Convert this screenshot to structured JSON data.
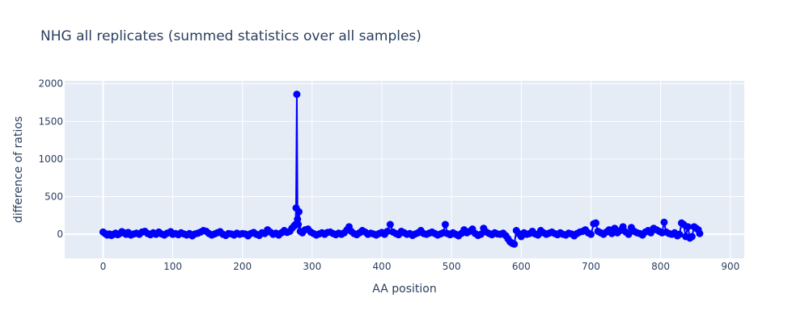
{
  "chart_data": {
    "type": "line",
    "title": "NHG all replicates (summed statistics over all samples)",
    "xlabel": "AA position",
    "ylabel": "difference of ratios",
    "xlim": [
      -55,
      920
    ],
    "ylim": [
      -320,
      2040
    ],
    "x_ticks": [
      0,
      100,
      200,
      300,
      400,
      500,
      600,
      700,
      800,
      900
    ],
    "y_ticks": [
      0,
      500,
      1000,
      1500,
      2000
    ],
    "grid": true,
    "legend": "none",
    "colors": {
      "line": "#0000ff",
      "marker": "#0000ff",
      "plot_bg": "#e5ecf6",
      "grid": "#ffffff",
      "text": "#2a3f5f"
    },
    "series": [
      {
        "x": [
          0,
          3,
          6,
          9,
          12,
          15,
          18,
          21,
          24,
          27,
          30,
          33,
          36,
          40,
          44,
          48,
          52,
          56,
          60,
          64,
          68,
          72,
          76,
          80,
          84,
          88,
          92,
          97,
          100,
          104,
          108,
          112,
          116,
          120,
          124,
          128,
          132,
          136,
          140,
          144,
          148,
          152,
          156,
          160,
          164,
          168,
          172,
          176,
          180,
          184,
          188,
          192,
          196,
          200,
          204,
          208,
          212,
          216,
          220,
          224,
          228,
          232,
          236,
          240,
          244,
          248,
          252,
          256,
          260,
          264,
          268,
          271,
          274,
          276,
          277,
          278,
          279,
          280,
          281,
          283,
          286,
          290,
          294,
          298,
          302,
          306,
          310,
          314,
          318,
          322,
          326,
          330,
          334,
          338,
          342,
          346,
          350,
          353,
          356,
          360,
          364,
          368,
          372,
          376,
          380,
          384,
          388,
          392,
          396,
          400,
          404,
          408,
          412,
          416,
          420,
          424,
          428,
          432,
          436,
          440,
          444,
          448,
          452,
          456,
          460,
          464,
          468,
          472,
          476,
          480,
          484,
          488,
          491,
          494,
          498,
          502,
          506,
          510,
          514,
          518,
          522,
          526,
          530,
          534,
          538,
          542,
          546,
          550,
          554,
          558,
          562,
          566,
          570,
          574,
          578,
          581,
          584,
          587,
          590,
          593,
          596,
          600,
          604,
          608,
          612,
          616,
          620,
          624,
          628,
          632,
          636,
          640,
          644,
          648,
          652,
          656,
          660,
          664,
          668,
          672,
          676,
          680,
          684,
          688,
          692,
          696,
          700,
          704,
          707,
          710,
          714,
          718,
          722,
          726,
          730,
          734,
          738,
          742,
          746,
          750,
          754,
          758,
          762,
          766,
          770,
          774,
          778,
          782,
          786,
          790,
          794,
          798,
          802,
          805,
          808,
          812,
          816,
          820,
          824,
          827,
          830,
          833,
          836,
          839,
          842,
          845,
          848,
          851,
          854,
          856
        ],
        "y": [
          30,
          10,
          -10,
          5,
          -15,
          0,
          15,
          -5,
          10,
          35,
          20,
          0,
          25,
          -10,
          5,
          15,
          0,
          30,
          40,
          10,
          -5,
          20,
          0,
          30,
          5,
          -10,
          15,
          35,
          0,
          10,
          -5,
          20,
          5,
          -10,
          10,
          -20,
          5,
          15,
          30,
          50,
          40,
          10,
          -10,
          5,
          20,
          35,
          0,
          -15,
          10,
          5,
          -10,
          15,
          0,
          10,
          5,
          -20,
          10,
          25,
          0,
          -15,
          20,
          10,
          60,
          30,
          0,
          15,
          -10,
          20,
          50,
          25,
          40,
          80,
          110,
          130,
          350,
          1860,
          200,
          130,
          300,
          40,
          20,
          60,
          70,
          30,
          10,
          -10,
          5,
          20,
          0,
          25,
          30,
          10,
          -5,
          15,
          0,
          20,
          60,
          100,
          40,
          10,
          -5,
          20,
          50,
          30,
          0,
          15,
          5,
          -10,
          10,
          25,
          0,
          40,
          130,
          30,
          10,
          -5,
          40,
          20,
          0,
          10,
          -15,
          5,
          20,
          50,
          10,
          0,
          15,
          30,
          10,
          -10,
          5,
          20,
          130,
          10,
          -5,
          20,
          0,
          -20,
          10,
          60,
          20,
          40,
          70,
          10,
          -15,
          0,
          80,
          30,
          10,
          -5,
          20,
          5,
          0,
          15,
          -20,
          -60,
          -100,
          -120,
          -130,
          50,
          10,
          -30,
          20,
          0,
          10,
          40,
          5,
          -10,
          50,
          20,
          0,
          15,
          30,
          10,
          -5,
          20,
          0,
          -10,
          15,
          5,
          -20,
          10,
          30,
          40,
          60,
          20,
          0,
          140,
          150,
          40,
          20,
          0,
          30,
          60,
          10,
          80,
          20,
          50,
          100,
          30,
          0,
          90,
          40,
          20,
          10,
          -10,
          30,
          50,
          20,
          80,
          60,
          40,
          20,
          160,
          30,
          10,
          0,
          20,
          -20,
          0,
          150,
          130,
          -30,
          100,
          -50,
          -30,
          100,
          80,
          60,
          10
        ],
        "color": "#0000ff"
      }
    ]
  }
}
